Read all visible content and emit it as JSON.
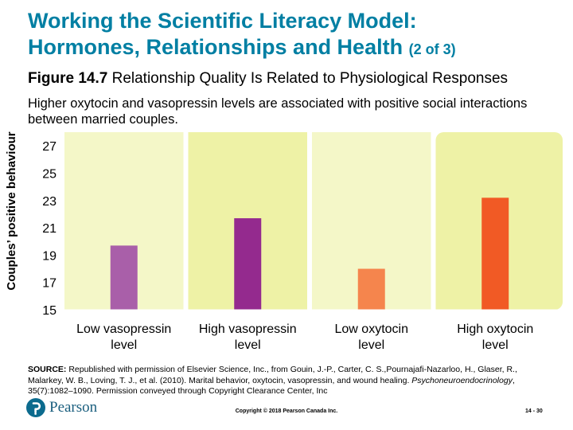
{
  "header": {
    "title_line1": "Working the Scientific Literacy Model:",
    "title_line2": "Hormones, Relationships and Health",
    "title_part": "(2 of 3)",
    "figure_number": "Figure 14.7",
    "figure_title": "Relationship Quality Is Related to Physiological Responses",
    "subtitle": "Higher oxytocin and vasopressin levels are associated with positive social interactions between married couples."
  },
  "chart_data": {
    "type": "bar",
    "categories": [
      [
        "Low vasopressin",
        "level"
      ],
      [
        "High vasopressin",
        "level"
      ],
      [
        "Low oxytocin",
        "level"
      ],
      [
        "High oxytocin",
        "level"
      ]
    ],
    "values": [
      19.7,
      21.7,
      18.0,
      23.2
    ],
    "ylabel": "Couples’ positive behaviour",
    "ylim": [
      15,
      28
    ],
    "yticks": [
      15,
      17,
      19,
      21,
      23,
      25,
      27
    ],
    "bar_colors": [
      "#a95fa9",
      "#942a8e",
      "#f5854d",
      "#f15a25"
    ],
    "panel_colors": [
      "#f4f7c8",
      "#eef2a6",
      "#f4f7c8",
      "#eef2a6"
    ]
  },
  "footer": {
    "source_label": "SOURCE:",
    "source_text1": "Republished with permission of Elsevier Science, Inc., from Gouin, J.-P., Carter, C. S.,Pournajafi-Nazarloo, H., Glaser, R., Malarkey, W. B., Loving, T. J., et al. (2010). Marital behavior, oxytocin, vasopressin, and wound healing.",
    "source_journal": "Psychoneuroendocrinology",
    "source_text2": ", 35(7):1082–1090. Permission conveyed through Copyright Clearance Center, Inc",
    "logo_text": "Pearson",
    "logo_icon": "pearson-logo-icon",
    "copyright": "Copyright © 2018 Pearson Canada Inc.",
    "page_number": "14 - 30"
  }
}
